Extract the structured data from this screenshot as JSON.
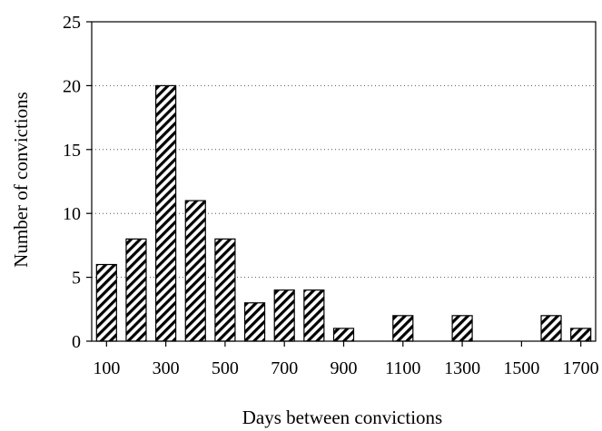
{
  "chart_data": {
    "type": "bar",
    "xlabel": "Days between convictions",
    "ylabel": "Number of convictions",
    "ylim": [
      0,
      25
    ],
    "yticks": [
      0,
      5,
      10,
      15,
      20,
      25
    ],
    "xlim": [
      50,
      1750
    ],
    "xticks": [
      100,
      300,
      500,
      700,
      900,
      1100,
      1300,
      1500,
      1700
    ],
    "grid": "horizontal dotted",
    "bar_fill": "diagonal hatch (black on white)",
    "x": [
      100,
      200,
      300,
      400,
      500,
      600,
      700,
      800,
      900,
      1100,
      1300,
      1600,
      1700
    ],
    "values": [
      6,
      8,
      20,
      11,
      8,
      3,
      4,
      4,
      1,
      2,
      2,
      2,
      1
    ]
  }
}
